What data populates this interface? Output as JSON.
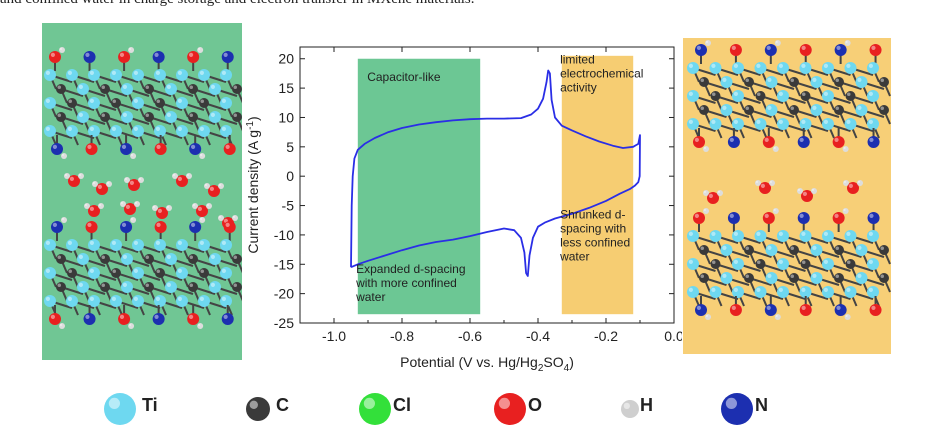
{
  "caption": "and confined water in charge storage and electron transfer in MXene materials.",
  "chart_data": {
    "type": "line",
    "xlabel": "Potential (V vs. Hg/Hg",
    "xlabel_sub1": "2",
    "xlabel_mid": "SO",
    "xlabel_sub2": "4",
    "xlabel_end": ")",
    "ylabel": "Current density (A g",
    "ylabel_sup": "-1",
    "ylabel_end": ")",
    "xlim": [
      -1.1,
      0.0
    ],
    "ylim": [
      -25,
      22
    ],
    "xticks": [
      "-1.0",
      "-0.8",
      "-0.6",
      "-0.4",
      "-0.2",
      "0.0"
    ],
    "xtick_values": [
      -1.0,
      -0.8,
      -0.6,
      -0.4,
      -0.2,
      0.0
    ],
    "yticks": [
      "20",
      "15",
      "10",
      "5",
      "0",
      "-5",
      "-10",
      "-15",
      "-20",
      "-25"
    ],
    "ytick_values": [
      20,
      15,
      10,
      5,
      0,
      -5,
      -10,
      -15,
      -20,
      -25
    ],
    "series": [
      {
        "color": "#2a2ee6",
        "x": [
          -0.95,
          -0.948,
          -0.945,
          -0.94,
          -0.93,
          -0.91,
          -0.88,
          -0.84,
          -0.8,
          -0.75,
          -0.7,
          -0.65,
          -0.6,
          -0.55,
          -0.5,
          -0.45,
          -0.42,
          -0.4,
          -0.385,
          -0.375,
          -0.37,
          -0.365,
          -0.36,
          -0.35,
          -0.33,
          -0.3,
          -0.26,
          -0.22,
          -0.18,
          -0.15,
          -0.12,
          -0.105,
          -0.1,
          -0.101,
          -0.105,
          -0.115,
          -0.13,
          -0.16,
          -0.2,
          -0.25,
          -0.3,
          -0.35,
          -0.38,
          -0.4,
          -0.415,
          -0.425,
          -0.43,
          -0.435,
          -0.44,
          -0.45,
          -0.47,
          -0.5,
          -0.55,
          -0.6,
          -0.65,
          -0.7,
          -0.75,
          -0.8,
          -0.85,
          -0.9,
          -0.93,
          -0.95,
          -0.95
        ],
        "y": [
          -15.5,
          -5,
          0,
          3,
          4.5,
          5.5,
          6.5,
          7.5,
          8.2,
          8.8,
          9.2,
          9.5,
          9.7,
          9.8,
          9.8,
          9.9,
          10.5,
          11.5,
          13.2,
          16,
          18,
          17.5,
          13,
          10,
          8.6,
          7.8,
          6.8,
          5.9,
          5.2,
          4.8,
          5.0,
          5.5,
          7.0,
          0,
          -1.0,
          -1.6,
          -2.2,
          -3.0,
          -4.2,
          -5.4,
          -6.4,
          -7.2,
          -7.9,
          -8.6,
          -10.5,
          -13.5,
          -17.0,
          -16.5,
          -13,
          -10.5,
          -9.2,
          -8.9,
          -9.5,
          -10.2,
          -10.8,
          -11.2,
          -11.8,
          -12.6,
          -13.5,
          -14.4,
          -15.0,
          -15.5,
          -15.5
        ]
      }
    ],
    "regions": [
      {
        "name": "capacitor",
        "x0": -0.93,
        "x1": -0.57,
        "y0": -23.5,
        "y1": 20,
        "color": "#6cc794"
      },
      {
        "name": "limited",
        "x0": -0.33,
        "x1": -0.12,
        "y0": -23.5,
        "y1": 20.5,
        "color": "#f6cd72"
      }
    ]
  },
  "annotations": {
    "capacitor_like": "Capacitor-like",
    "limited": [
      "limited",
      "electrochemical",
      "activity"
    ],
    "expanded": [
      "Expanded d-spacing",
      "with more confined",
      "water"
    ],
    "shrunked": [
      "Shrunked d-",
      "spacing with",
      "less confined",
      "water"
    ]
  },
  "legend": [
    {
      "symbol": "Ti",
      "color": "#6ed8f0"
    },
    {
      "symbol": "C",
      "color": "#3a3a3a"
    },
    {
      "symbol": "Cl",
      "color": "#33e03a"
    },
    {
      "symbol": "O",
      "color": "#e82020"
    },
    {
      "symbol": "H",
      "color": "#cfcfcf"
    },
    {
      "symbol": "N",
      "color": "#1c2fb0"
    }
  ],
  "colors": {
    "left_panel": "#70c694",
    "right_panel": "#f7cf77",
    "curve": "#2a2ee6"
  }
}
